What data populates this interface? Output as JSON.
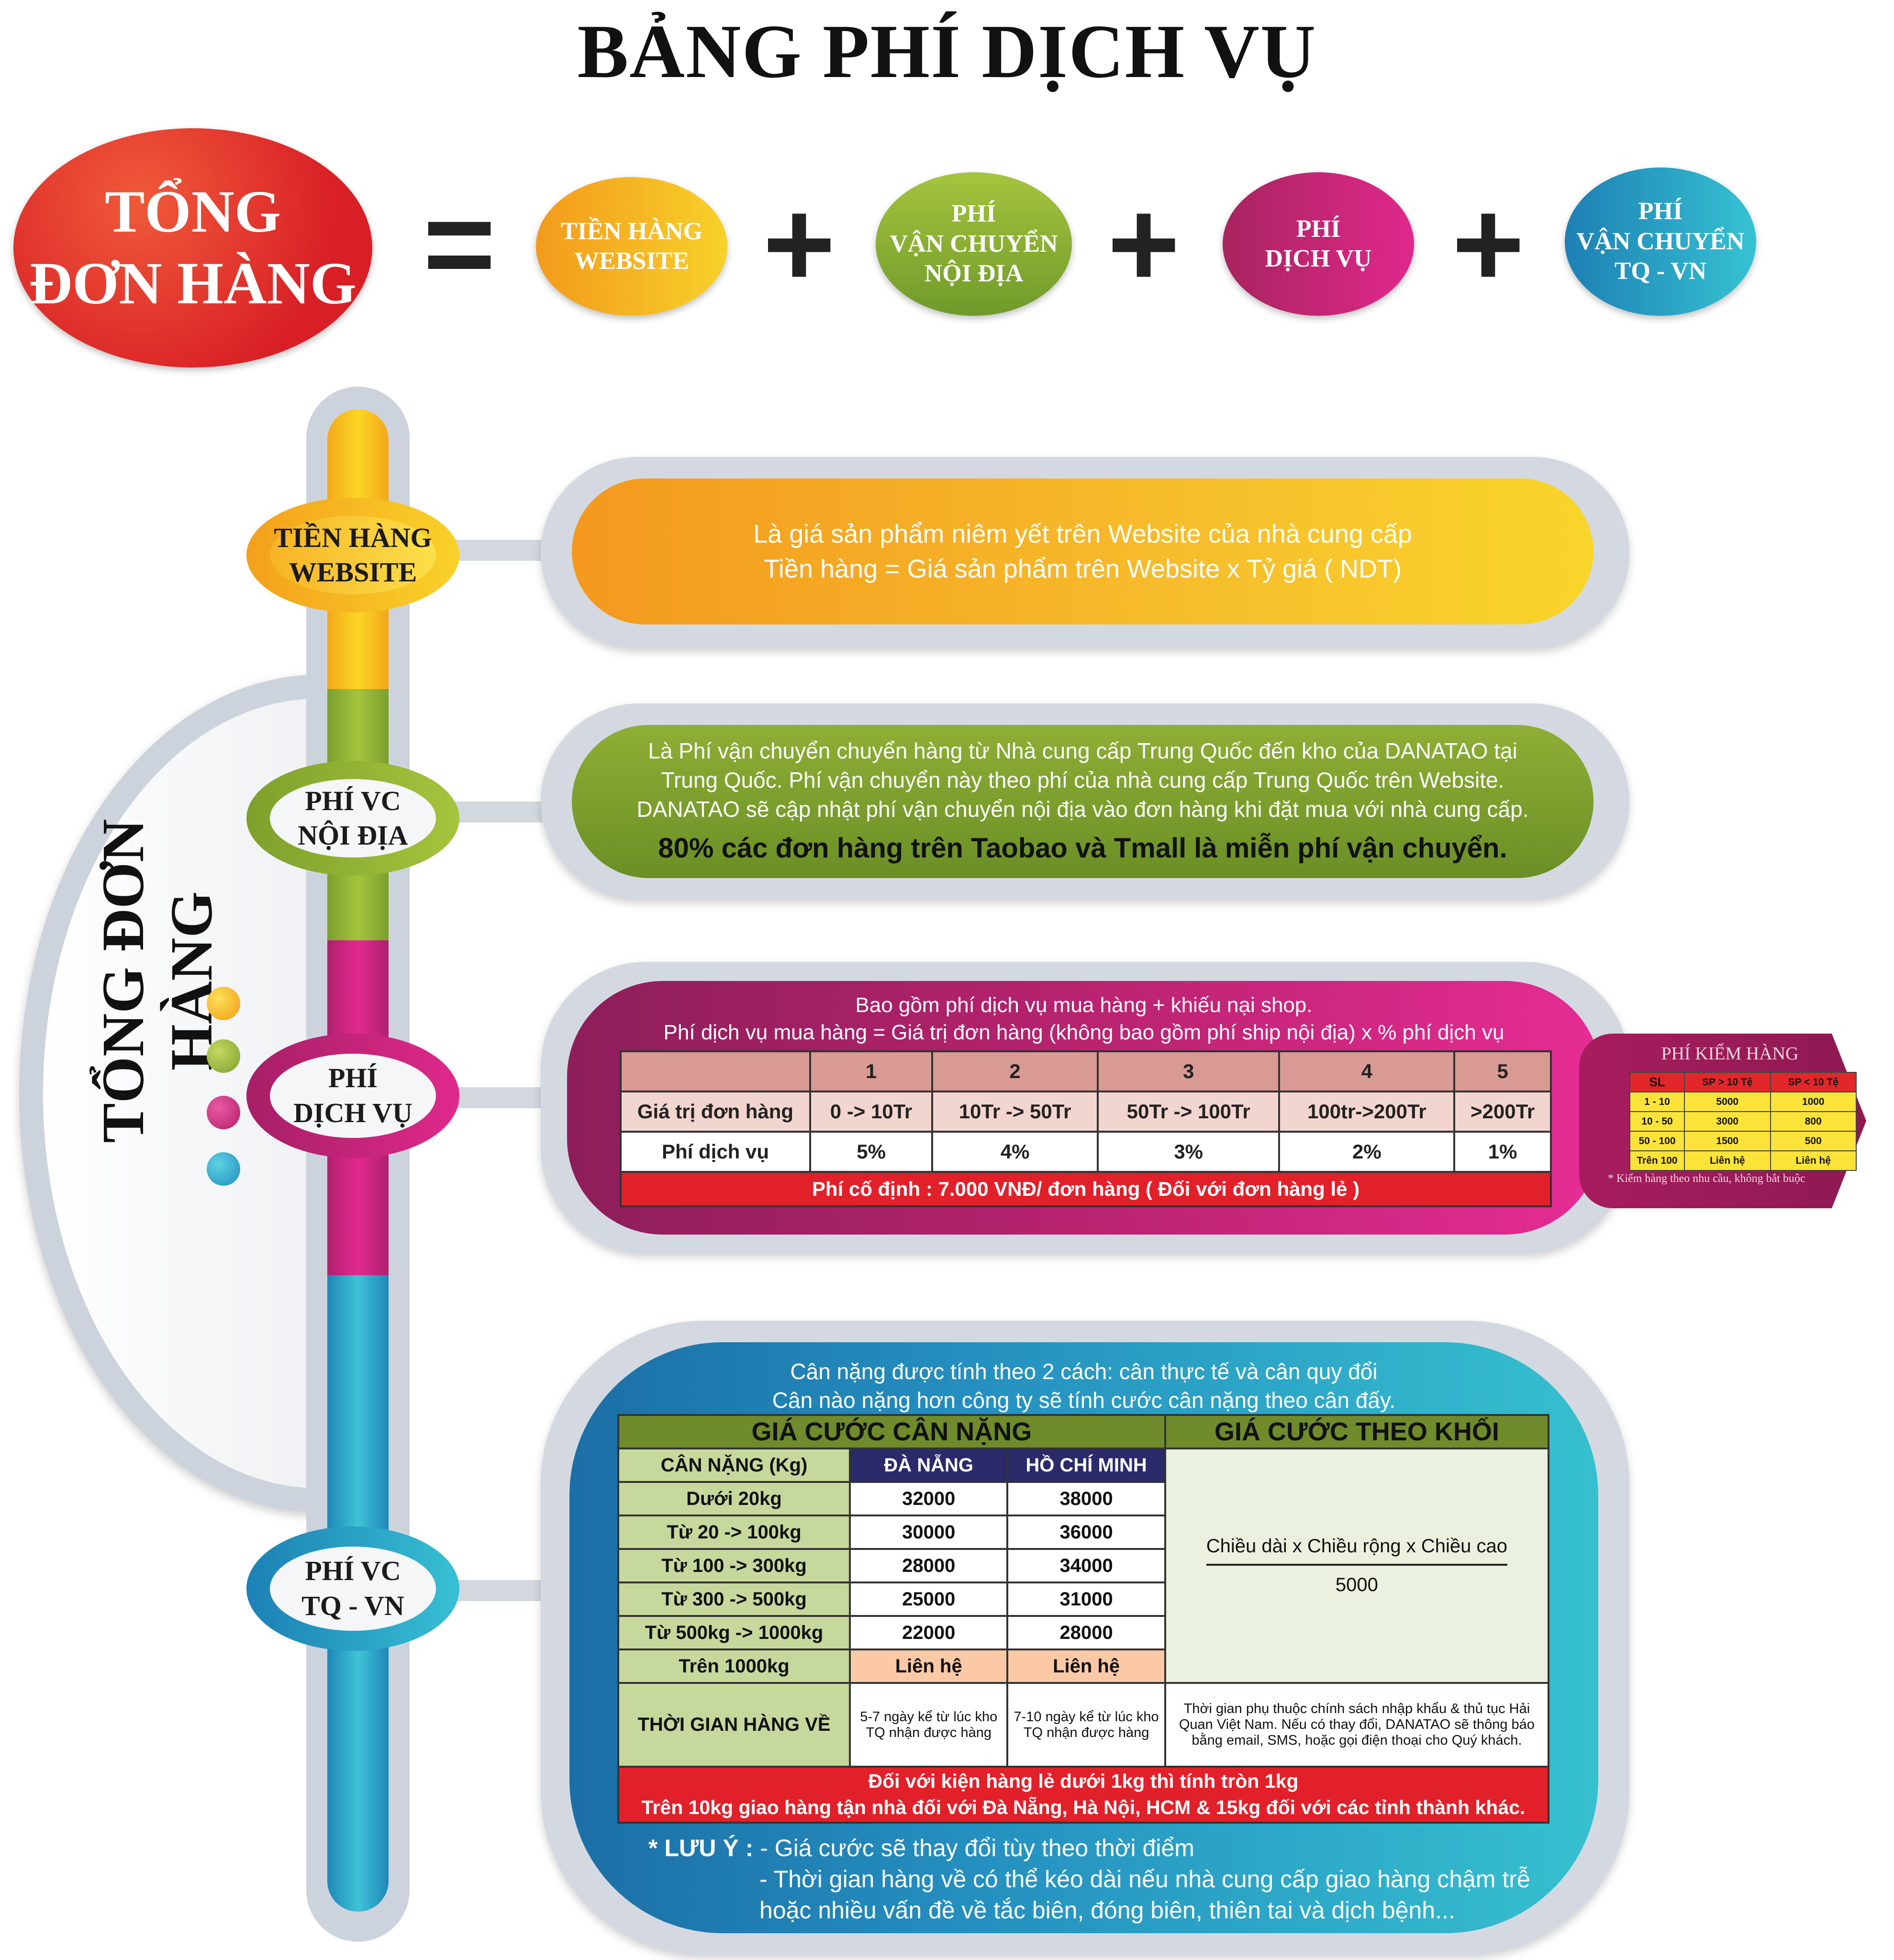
{
  "title": "BẢNG PHÍ DỊCH VỤ",
  "formula": {
    "total": [
      "TỔNG",
      "ĐƠN HÀNG"
    ],
    "equals": "=",
    "plus": "+",
    "items": [
      [
        "TIỀN HÀNG",
        "WEBSITE"
      ],
      [
        "PHÍ",
        "VẬN CHUYỂN",
        "NỘI ĐỊA"
      ],
      [
        "PHÍ",
        "DỊCH VỤ"
      ],
      [
        "PHÍ",
        "VẬN CHUYỂN",
        "TQ - VN"
      ]
    ]
  },
  "vertical_label": "TỔNG ĐƠN HÀNG",
  "colors": {
    "yellow": "#f7c316",
    "green": "#8db23a",
    "magenta": "#c2237a",
    "teal": "#2aa0c4",
    "red": "#d6202a"
  },
  "nodes": [
    [
      "TIỀN HÀNG",
      "WEBSITE"
    ],
    [
      "PHÍ VC",
      "NỘI ĐỊA"
    ],
    [
      "PHÍ",
      "DỊCH VỤ"
    ],
    [
      "PHÍ VC",
      "TQ - VN"
    ]
  ],
  "website": {
    "lines": [
      "Là giá sản phẩm niêm yết trên Website của nhà cung cấp",
      "Tiền hàng = Giá sản phẩm trên Website x Tỷ giá ( NDT)"
    ]
  },
  "domestic": {
    "lines": [
      "Là Phí vận chuyển chuyển hàng từ Nhà cung cấp Trung Quốc đến kho của DANATAO tại",
      "Trung Quốc. Phí vận chuyển này theo phí của nhà cung cấp Trung Quốc trên Website.",
      "DANATAO sẽ cập nhật phí vận chuyển nội địa vào đơn hàng khi đặt mua với nhà cung cấp."
    ],
    "highlight": "80% các đơn hàng trên Taobao và Tmall là miễn phí vận chuyển."
  },
  "service": {
    "lines": [
      "Bao gồm phí dịch vụ mua hàng + khiếu nại shop.",
      "Phí dịch vụ mua hàng = Giá trị đơn hàng (không bao gồm phí ship nội địa) x % phí dịch vụ"
    ],
    "header": [
      "",
      "1",
      "2",
      "3",
      "4",
      "5"
    ],
    "rows": [
      [
        "Giá trị đơn hàng",
        "0 -> 10Tr",
        "10Tr -> 50Tr",
        "50Tr -> 100Tr",
        "100tr->200Tr",
        ">200Tr"
      ],
      [
        "Phí dịch vụ",
        "5%",
        "4%",
        "3%",
        "2%",
        "1%"
      ]
    ],
    "fixed_fee": "Phí cố định : 7.000 VNĐ/ đơn hàng ( Đối với đơn hàng lẻ )"
  },
  "inspection": {
    "title": "PHÍ KIỂM HÀNG",
    "header": [
      "SL",
      "SP > 10 Tệ",
      "SP < 10 Tệ"
    ],
    "rows": [
      [
        "1 - 10",
        "5000",
        "1000"
      ],
      [
        "10 - 50",
        "3000",
        "800"
      ],
      [
        "50 - 100",
        "1500",
        "500"
      ],
      [
        "Trên 100",
        "Liên hệ",
        "Liên hệ"
      ]
    ],
    "note": "* Kiểm hàng theo nhu cầu, không bắt buộc"
  },
  "intl": {
    "lines": [
      "Cân nặng được tính theo 2 cách: cân thực tế và cân quy đổi",
      "Cân nào nặng hơn công ty sẽ tính cước cân nặng theo cân đấy."
    ],
    "weight_title": "GIÁ CƯỚC CÂN NẶNG",
    "volume_title": "GIÁ CƯỚC THEO KHỐI",
    "header": [
      "CÂN NẶNG (Kg)",
      "ĐÀ NẴNG",
      "HỒ CHÍ MINH"
    ],
    "rows": [
      [
        "Dưới 20kg",
        "32000",
        "38000"
      ],
      [
        "Từ 20 -> 100kg",
        "30000",
        "36000"
      ],
      [
        "Từ 100 -> 300kg",
        "28000",
        "34000"
      ],
      [
        "Từ 300 -> 500kg",
        "25000",
        "31000"
      ],
      [
        "Từ 500kg -> 1000kg",
        "22000",
        "28000"
      ],
      [
        "Trên 1000kg",
        "Liên hệ",
        "Liên hệ"
      ]
    ],
    "formula_numerator": "Chiều dài x Chiều rộng x Chiều cao",
    "formula_denominator": "5000",
    "time_label": "THỜI GIAN HÀNG VỀ",
    "time_dn": "5-7 ngày kể từ lúc kho TQ nhận được hàng",
    "time_hcm": "7-10 ngày kể từ lúc kho TQ nhận được hàng",
    "time_volume": "Thời gian phụ thuộc chính sách nhập khẩu & thủ tục Hải Quan Việt Nam. Nếu có thay đổi, DANATAO sẽ thông báo bằng email, SMS, hoặc gọi điện thoại cho Quý khách.",
    "red_lines": [
      "Đối với kiện hàng lẻ dưới 1kg thì tính tròn 1kg",
      "Trên 10kg giao hàng tận nhà đối với Đà Nẵng, Hà Nội, HCM & 15kg đối với các tỉnh thành khác."
    ],
    "note_label": "* LƯU Ý :",
    "note_lines": [
      "- Giá cước sẽ thay đổi tùy theo thời điểm",
      "- Thời gian hàng về có thể kéo dài nếu nhà cung cấp giao hàng chậm trễ",
      "hoặc nhiều vấn đề về tắc biên, đóng biên, thiên tai và dịch bệnh..."
    ]
  }
}
